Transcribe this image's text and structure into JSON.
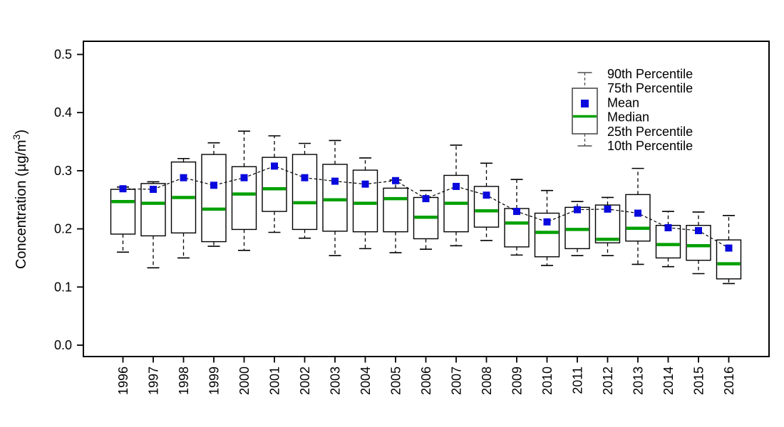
{
  "chart_data": {
    "type": "boxplot",
    "title": "",
    "ylabel_text": "Concentration (µg/m³)",
    "ylabel_parts": [
      "Concentration (µg/m",
      "3",
      ")"
    ],
    "y_ticks": [
      "0.0",
      "0.1",
      "0.2",
      "0.3",
      "0.4",
      "0.5"
    ],
    "ylim": [
      0.0,
      0.5
    ],
    "grid": "off",
    "legend_position": "top-right-inside",
    "x_categories": [
      "1996",
      "1997",
      "1998",
      "1999",
      "2000",
      "2001",
      "2002",
      "2003",
      "2004",
      "2005",
      "2006",
      "2007",
      "2008",
      "2009",
      "2010",
      "2011",
      "2012",
      "2013",
      "2014",
      "2015",
      "2016"
    ],
    "legend": {
      "items": [
        "90th Percentile",
        "75th Percentile",
        "Mean",
        "Median",
        "25th Percentile",
        "10th Percentile"
      ]
    },
    "series": {
      "p90": [
        0.272,
        0.281,
        0.321,
        0.348,
        0.368,
        0.36,
        0.347,
        0.352,
        0.322,
        0.284,
        0.266,
        0.344,
        0.313,
        0.285,
        0.266,
        0.247,
        0.254,
        0.304,
        0.23,
        0.229,
        0.223
      ],
      "p75": [
        0.268,
        0.278,
        0.315,
        0.328,
        0.307,
        0.323,
        0.328,
        0.311,
        0.301,
        0.27,
        0.254,
        0.292,
        0.273,
        0.235,
        0.227,
        0.237,
        0.241,
        0.259,
        0.206,
        0.206,
        0.181
      ],
      "mean": [
        0.269,
        0.268,
        0.288,
        0.275,
        0.288,
        0.308,
        0.288,
        0.282,
        0.277,
        0.283,
        0.252,
        0.273,
        0.258,
        0.23,
        0.212,
        0.233,
        0.234,
        0.227,
        0.202,
        0.197,
        0.167
      ],
      "median": [
        0.247,
        0.244,
        0.254,
        0.234,
        0.26,
        0.269,
        0.245,
        0.25,
        0.244,
        0.252,
        0.22,
        0.244,
        0.231,
        0.21,
        0.194,
        0.199,
        0.182,
        0.201,
        0.173,
        0.171,
        0.14
      ],
      "p25": [
        0.191,
        0.188,
        0.193,
        0.178,
        0.199,
        0.23,
        0.199,
        0.196,
        0.195,
        0.195,
        0.183,
        0.195,
        0.203,
        0.169,
        0.152,
        0.166,
        0.176,
        0.179,
        0.15,
        0.146,
        0.114
      ],
      "p10": [
        0.16,
        0.133,
        0.15,
        0.17,
        0.163,
        0.194,
        0.184,
        0.154,
        0.166,
        0.159,
        0.165,
        0.171,
        0.18,
        0.155,
        0.137,
        0.154,
        0.154,
        0.139,
        0.135,
        0.123,
        0.106
      ]
    },
    "colors": {
      "frame": "#000000",
      "mean_marker": "#0909dd",
      "median_line": "#00a000",
      "legend_stroke": "#4d4d4d"
    }
  }
}
